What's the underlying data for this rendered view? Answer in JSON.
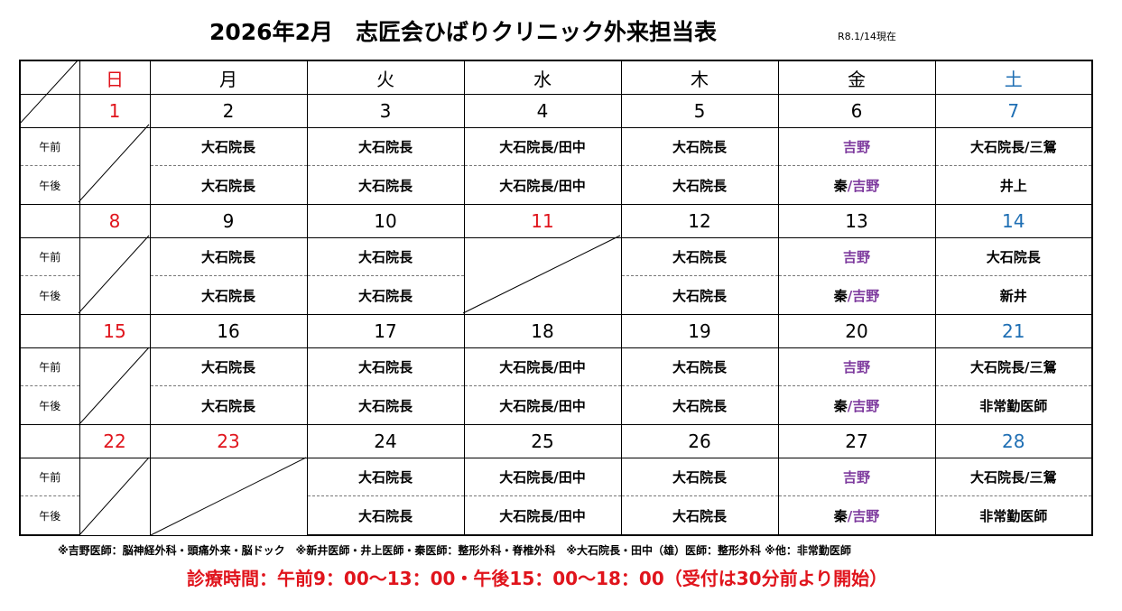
{
  "title": "2026年2月　志匠会ひばりクリニック外来担当表",
  "as_of": "R8.1/14現在",
  "days_of_week": [
    "日",
    "月",
    "火",
    "水",
    "木",
    "金",
    "土"
  ],
  "labels": {
    "am": "午前",
    "pm": "午後"
  },
  "colors": {
    "holiday_red": "#e0141c",
    "saturday_blue": "#1f6fb4",
    "yoshino_purple": "#7e3b9e"
  },
  "weeks": [
    {
      "dates": [
        "1",
        "2",
        "3",
        "4",
        "5",
        "6",
        "7"
      ],
      "am": [
        "",
        "大石院長",
        "大石院長",
        "大石院長/田中",
        "大石院長",
        "吉野",
        "大石院長/三鴛"
      ],
      "pm": [
        "",
        "大石院長",
        "大石院長",
        "大石院長/田中",
        "大石院長",
        "秦/吉野",
        "井上"
      ]
    },
    {
      "dates": [
        "8",
        "9",
        "10",
        "11",
        "12",
        "13",
        "14"
      ],
      "am": [
        "",
        "大石院長",
        "大石院長",
        "",
        "大石院長",
        "吉野",
        "大石院長"
      ],
      "pm": [
        "",
        "大石院長",
        "大石院長",
        "",
        "大石院長",
        "秦/吉野",
        "新井"
      ]
    },
    {
      "dates": [
        "15",
        "16",
        "17",
        "18",
        "19",
        "20",
        "21"
      ],
      "am": [
        "",
        "大石院長",
        "大石院長",
        "大石院長/田中",
        "大石院長",
        "吉野",
        "大石院長/三鴛"
      ],
      "pm": [
        "",
        "大石院長",
        "大石院長",
        "大石院長/田中",
        "大石院長",
        "秦/吉野",
        "非常勤医師"
      ]
    },
    {
      "dates": [
        "22",
        "23",
        "24",
        "25",
        "26",
        "27",
        "28"
      ],
      "am": [
        "",
        "",
        "大石院長",
        "大石院長/田中",
        "大石院長",
        "吉野",
        "大石院長/三鴛"
      ],
      "pm": [
        "",
        "",
        "大石院長",
        "大石院長/田中",
        "大石院長",
        "秦/吉野",
        "非常勤医師"
      ]
    }
  ],
  "qin_yoshino": {
    "qin": "秦",
    "sep": "/",
    "yoshino": "吉野"
  },
  "footnote": "※吉野医師：脳神経外科・頭痛外来・脳ドック　※新井医師・井上医師・秦医師：整形外科・脊椎外科　※大石院長・田中（雄）医師：整形外科 ※他：非常勤医師",
  "hours": "診療時間：午前9：00～13：00・午後15：00～18：00（受付は30分前より開始）"
}
